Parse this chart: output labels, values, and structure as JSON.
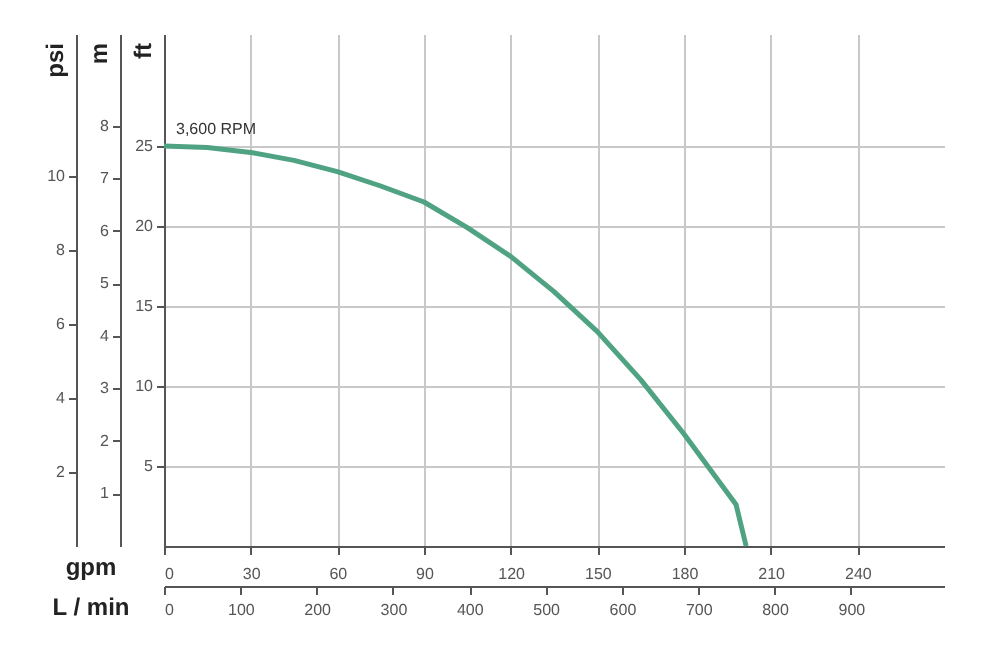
{
  "chart_data": {
    "type": "line",
    "x": [
      0,
      15,
      30,
      45,
      60,
      75,
      90,
      105,
      120,
      135,
      150,
      165,
      180,
      198,
      201.5
    ],
    "series": [
      {
        "color": "#4fa383",
        "values": [
          25,
          24.9,
          24.6,
          24.1,
          23.4,
          22.5,
          21.5,
          19.9,
          18.1,
          15.9,
          13.4,
          10.4,
          7.0,
          2.6,
          0
        ]
      }
    ],
    "xlabel": "gpm",
    "ylabel": "ft",
    "y2label": "m",
    "y3label": "psi",
    "x2label": "L / min",
    "xlim": [
      0,
      270
    ],
    "xticks": [
      0,
      30,
      60,
      90,
      120,
      150,
      180,
      210,
      240
    ],
    "ylim": [
      0,
      32
    ],
    "yticks": [
      5,
      10,
      15,
      20,
      25
    ],
    "y2lim": [
      0,
      9.75
    ],
    "y2ticks": [
      1,
      2,
      3,
      4,
      5,
      6,
      7,
      8
    ],
    "y3lim": [
      0,
      13.85
    ],
    "y3ticks": [
      2,
      4,
      6,
      8,
      10
    ],
    "x2lim": [
      0,
      1022
    ],
    "x2ticks": [
      0,
      100,
      200,
      300,
      400,
      500,
      600,
      700,
      800,
      900
    ],
    "grid": true,
    "annotations": [
      {
        "text": "3,600 RPM",
        "x": 0,
        "y": 25
      }
    ]
  }
}
